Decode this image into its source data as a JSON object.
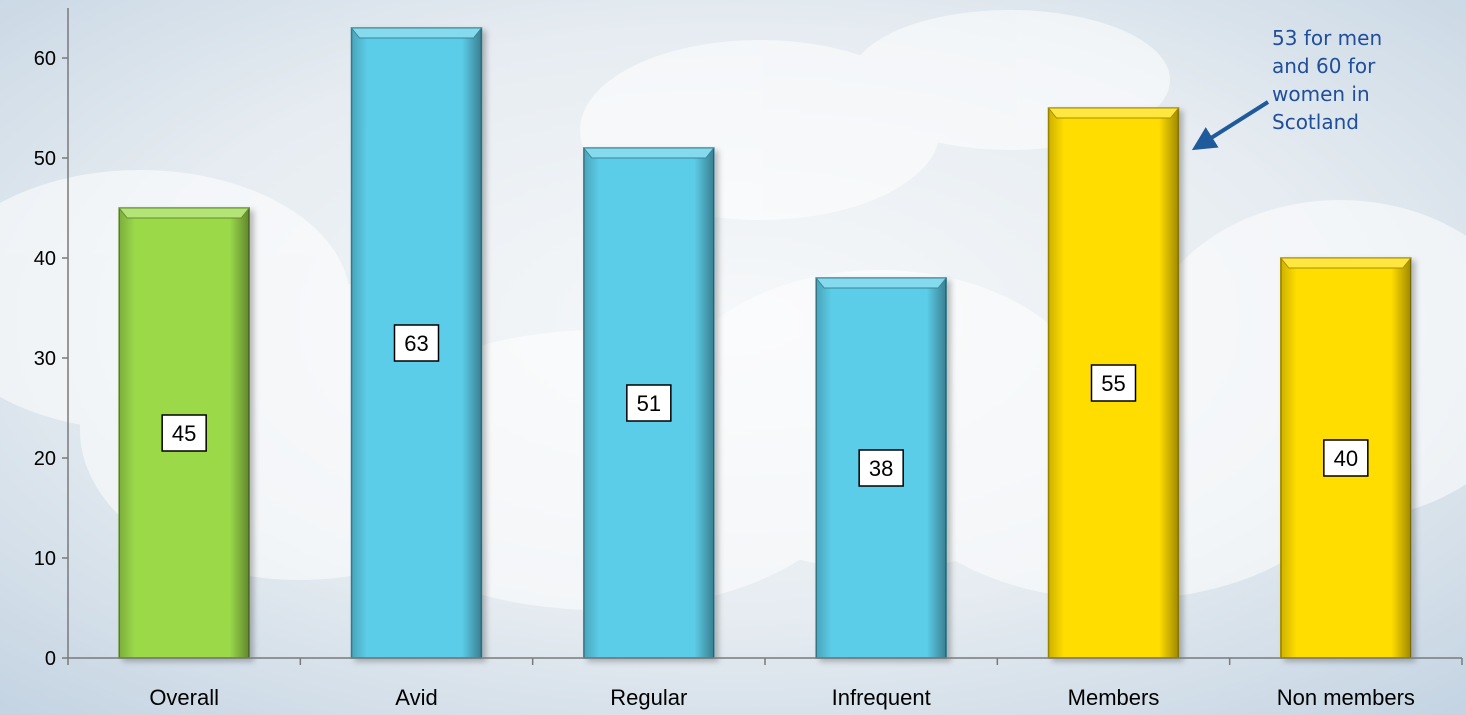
{
  "chart_data": {
    "type": "bar",
    "categories": [
      "Overall",
      "Avid",
      "Regular",
      "Infrequent",
      "Members",
      "Non members"
    ],
    "values": [
      45,
      63,
      51,
      38,
      55,
      40
    ],
    "data_labels": [
      "45",
      "63",
      "51",
      "38",
      "55",
      "40"
    ],
    "bar_colors": [
      "#9bd94a",
      "#5ccde8",
      "#5ccde8",
      "#5ccde8",
      "#ffdd00",
      "#ffdd00"
    ],
    "ylim": [
      0,
      65
    ],
    "yticks": [
      0,
      10,
      20,
      30,
      40,
      50,
      60
    ],
    "ytick_labels": [
      "0",
      "10",
      "20",
      "30",
      "40",
      "50",
      "60"
    ],
    "grid": false,
    "title": "",
    "xlabel": "",
    "ylabel": "",
    "annotation": {
      "lines": [
        "53 for men",
        "and 60 for",
        "women in",
        "Scotland"
      ],
      "color": "#1f4e9a",
      "target_category": "Members"
    }
  }
}
